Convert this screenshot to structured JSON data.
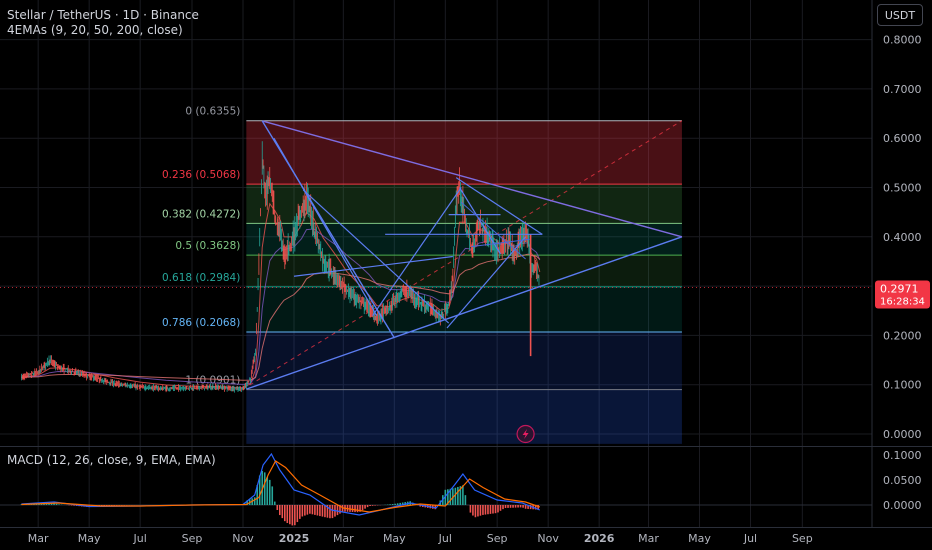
{
  "header": {
    "title": "Stellar / TetherUS · 1D · Binance",
    "indicator": "4EMAs (9, 20, 50, 200, close)",
    "currency": "USDT"
  },
  "macd": {
    "label": "MACD (12, 26, close, 9, EMA, EMA)"
  },
  "colors": {
    "background": "#000000",
    "candle_up": "#26a69a",
    "candle_down": "#ef5350",
    "trendline": "#5b7cf0",
    "triangle": "#7e6ce0",
    "price_badge": "#f23645",
    "fib_red": "#f23645",
    "fib_green": "#4caf50",
    "fib_teal": "#089981",
    "fib_blue": "#2962ff"
  },
  "icons": {
    "flash": "lightning-icon"
  },
  "chart_data": {
    "type": "line",
    "title": "Stellar / TetherUS · 1D · Binance",
    "y_axis": {
      "ticks": [
        "0.8000",
        "0.7000",
        "0.6000",
        "0.5000",
        "0.4000",
        "0.3000",
        "0.2000",
        "0.1000",
        "0.0000"
      ],
      "tick_values": [
        0.8,
        0.7,
        0.6,
        0.5,
        0.4,
        0.3,
        0.2,
        0.1,
        0.0
      ],
      "ylim": [
        -0.02,
        0.86
      ]
    },
    "x_axis": {
      "ticks": [
        "Mar",
        "May",
        "Jul",
        "Sep",
        "Nov",
        "2025",
        "Mar",
        "May",
        "Jul",
        "Sep",
        "Nov",
        "2026",
        "Mar",
        "May",
        "Jul",
        "Sep"
      ],
      "bold": [
        "2025",
        "2026"
      ]
    },
    "current_price": {
      "value": 0.2971,
      "label": "0.2971",
      "countdown": "16:28:34"
    },
    "fib_levels": [
      {
        "label": "0 (0.6355)",
        "value": 0.6355
      },
      {
        "label": "0.236 (0.5068)",
        "value": 0.5068
      },
      {
        "label": "0.382 (0.4272)",
        "value": 0.4272
      },
      {
        "label": "0.5 (0.3628)",
        "value": 0.3628
      },
      {
        "label": "0.618 (0.2984)",
        "value": 0.2984
      },
      {
        "label": "0.786 (0.2068)",
        "value": 0.2068
      },
      {
        "label": "1 (0.0901)",
        "value": 0.0901
      }
    ],
    "price_series": {
      "name": "XLMUSDT close",
      "points": [
        [
          "2024-02-10",
          0.115
        ],
        [
          "2024-03-01",
          0.125
        ],
        [
          "2024-03-15",
          0.15
        ],
        [
          "2024-03-25",
          0.135
        ],
        [
          "2024-04-15",
          0.125
        ],
        [
          "2024-05-05",
          0.115
        ],
        [
          "2024-06-01",
          0.102
        ],
        [
          "2024-07-01",
          0.095
        ],
        [
          "2024-08-01",
          0.092
        ],
        [
          "2024-09-01",
          0.094
        ],
        [
          "2024-10-01",
          0.095
        ],
        [
          "2024-11-01",
          0.091
        ],
        [
          "2024-11-10",
          0.112
        ],
        [
          "2024-11-16",
          0.165
        ],
        [
          "2024-11-20",
          0.35
        ],
        [
          "2024-11-24",
          0.56
        ],
        [
          "2024-11-28",
          0.48
        ],
        [
          "2024-12-03",
          0.52
        ],
        [
          "2024-12-10",
          0.43
        ],
        [
          "2024-12-16",
          0.41
        ],
        [
          "2024-12-20",
          0.36
        ],
        [
          "2025-01-01",
          0.4
        ],
        [
          "2025-01-10",
          0.455
        ],
        [
          "2025-01-16",
          0.48
        ],
        [
          "2025-01-25",
          0.42
        ],
        [
          "2025-02-05",
          0.35
        ],
        [
          "2025-02-20",
          0.32
        ],
        [
          "2025-03-05",
          0.29
        ],
        [
          "2025-03-20",
          0.27
        ],
        [
          "2025-04-01",
          0.255
        ],
        [
          "2025-04-10",
          0.235
        ],
        [
          "2025-04-25",
          0.255
        ],
        [
          "2025-05-10",
          0.29
        ],
        [
          "2025-05-20",
          0.285
        ],
        [
          "2025-06-01",
          0.265
        ],
        [
          "2025-06-15",
          0.255
        ],
        [
          "2025-06-25",
          0.235
        ],
        [
          "2025-07-05",
          0.26
        ],
        [
          "2025-07-10",
          0.32
        ],
        [
          "2025-07-14",
          0.47
        ],
        [
          "2025-07-18",
          0.505
        ],
        [
          "2025-07-25",
          0.43
        ],
        [
          "2025-08-02",
          0.37
        ],
        [
          "2025-08-10",
          0.43
        ],
        [
          "2025-08-20",
          0.405
        ],
        [
          "2025-08-28",
          0.38
        ],
        [
          "2025-09-05",
          0.37
        ],
        [
          "2025-09-15",
          0.395
        ],
        [
          "2025-09-22",
          0.36
        ],
        [
          "2025-10-01",
          0.405
        ],
        [
          "2025-10-08",
          0.395
        ],
        [
          "2025-10-12",
          0.335
        ],
        [
          "2025-10-18",
          0.34
        ],
        [
          "2025-10-22",
          0.2971
        ]
      ]
    },
    "macd_axis": {
      "ticks": [
        "0.1000",
        "0.0500",
        "0.0000"
      ],
      "tick_values": [
        0.1,
        0.05,
        0.0
      ]
    },
    "macd_series": {
      "macd": [
        [
          "2024-02-10",
          0.002
        ],
        [
          "2024-03-20",
          0.006
        ],
        [
          "2024-05-01",
          -0.003
        ],
        [
          "2024-07-01",
          -0.002
        ],
        [
          "2024-09-01",
          0.0
        ],
        [
          "2024-11-01",
          0.001
        ],
        [
          "2024-11-15",
          0.02
        ],
        [
          "2024-11-25",
          0.08
        ],
        [
          "2024-12-05",
          0.102
        ],
        [
          "2024-12-15",
          0.07
        ],
        [
          "2025-01-01",
          0.03
        ],
        [
          "2025-01-20",
          0.02
        ],
        [
          "2025-02-15",
          -0.01
        ],
        [
          "2025-03-20",
          -0.02
        ],
        [
          "2025-04-20",
          -0.008
        ],
        [
          "2025-05-20",
          0.004
        ],
        [
          "2025-06-20",
          -0.006
        ],
        [
          "2025-07-12",
          0.04
        ],
        [
          "2025-07-22",
          0.062
        ],
        [
          "2025-08-05",
          0.03
        ],
        [
          "2025-09-01",
          0.01
        ],
        [
          "2025-10-01",
          0.004
        ],
        [
          "2025-10-22",
          -0.01
        ]
      ],
      "signal": [
        [
          "2024-02-10",
          0.001
        ],
        [
          "2024-03-25",
          0.004
        ],
        [
          "2024-05-15",
          -0.002
        ],
        [
          "2024-07-01",
          -0.002
        ],
        [
          "2024-09-01",
          0.0
        ],
        [
          "2024-11-05",
          0.001
        ],
        [
          "2024-11-20",
          0.015
        ],
        [
          "2024-12-01",
          0.06
        ],
        [
          "2024-12-10",
          0.088
        ],
        [
          "2024-12-22",
          0.075
        ],
        [
          "2025-01-10",
          0.04
        ],
        [
          "2025-02-01",
          0.02
        ],
        [
          "2025-03-01",
          -0.006
        ],
        [
          "2025-04-01",
          -0.014
        ],
        [
          "2025-05-01",
          -0.005
        ],
        [
          "2025-06-01",
          0.002
        ],
        [
          "2025-07-01",
          -0.002
        ],
        [
          "2025-07-18",
          0.03
        ],
        [
          "2025-07-30",
          0.052
        ],
        [
          "2025-08-15",
          0.035
        ],
        [
          "2025-09-10",
          0.012
        ],
        [
          "2025-10-05",
          0.006
        ],
        [
          "2025-10-22",
          -0.004
        ]
      ]
    }
  }
}
